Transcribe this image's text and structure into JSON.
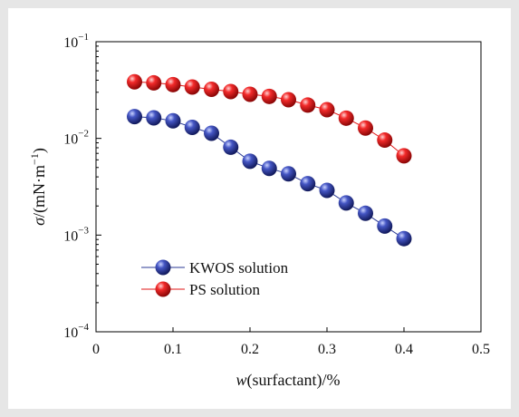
{
  "colors": {
    "frame_background": "#e6e6e6",
    "plot_background": "#ffffff",
    "series_kwos": "#2b3a94",
    "series_ps": "#e01515"
  },
  "chart_data": {
    "type": "scatter",
    "title": "",
    "xlabel_italic": "w",
    "xlabel_rest": "(surfactant)/%",
    "ylabel_italic": "σ",
    "ylabel_rest": "/(mN·m",
    "ylabel_sup": "−1",
    "ylabel_close": ")",
    "xlim": [
      0,
      0.5
    ],
    "ylim": [
      0.0001,
      0.1
    ],
    "yscale": "log",
    "x_ticks": [
      "0",
      "0.1",
      "0.2",
      "0.3",
      "0.4",
      "0.5"
    ],
    "x_tick_values": [
      0,
      0.1,
      0.2,
      0.3,
      0.4,
      0.5
    ],
    "y_ticks": [
      {
        "value": 0.1,
        "base": "10",
        "exp": "−1"
      },
      {
        "value": 0.01,
        "base": "10",
        "exp": "−2"
      },
      {
        "value": 0.001,
        "base": "10",
        "exp": "−3"
      },
      {
        "value": 0.0001,
        "base": "10",
        "exp": "−4"
      }
    ],
    "legend_position": "bottom-left",
    "grid": false,
    "series": [
      {
        "name": "KWOS solution",
        "color": "#2b3a94",
        "x": [
          0.05,
          0.075,
          0.1,
          0.125,
          0.15,
          0.175,
          0.2,
          0.225,
          0.25,
          0.275,
          0.3,
          0.325,
          0.35,
          0.375,
          0.4
        ],
        "y": [
          0.0168,
          0.0163,
          0.0152,
          0.013,
          0.0113,
          0.0081,
          0.0058,
          0.0049,
          0.0043,
          0.0034,
          0.0029,
          0.00215,
          0.00168,
          0.00124,
          0.00092
        ]
      },
      {
        "name": "PS solution",
        "color": "#e01515",
        "x": [
          0.05,
          0.075,
          0.1,
          0.125,
          0.15,
          0.175,
          0.2,
          0.225,
          0.25,
          0.275,
          0.3,
          0.325,
          0.35,
          0.375,
          0.4
        ],
        "y": [
          0.0385,
          0.0375,
          0.036,
          0.034,
          0.0322,
          0.0305,
          0.0286,
          0.0272,
          0.0251,
          0.0221,
          0.0198,
          0.0162,
          0.0128,
          0.0096,
          0.0066
        ]
      }
    ]
  }
}
